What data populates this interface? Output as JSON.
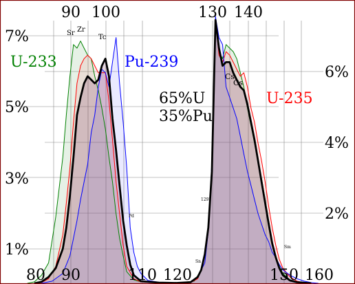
{
  "chart_data": {
    "type": "line",
    "title": "",
    "xlabel": "",
    "ylabel": "",
    "x_top_ticks": [
      "90",
      "100",
      "130",
      "140"
    ],
    "x_bottom_ticks": [
      "80",
      "90",
      "110",
      "120",
      "150",
      "160"
    ],
    "y_left_ticks": [
      "7%",
      "5%",
      "3%",
      "1%"
    ],
    "y_right_ticks": [
      "6%",
      "4%",
      "2%"
    ],
    "series_labels": {
      "u233": "U-233",
      "pu239": "Pu-239",
      "u235": "U-235",
      "mix": "65%U\n35%Pu"
    },
    "annotations": [
      "Sr",
      "Zr",
      "Tc",
      "Cs",
      "Cs",
      "Pd",
      "129I",
      "Sn",
      "Sm"
    ],
    "colors": {
      "u233": "#008000",
      "u235": "#ff0000",
      "pu239": "#0000ff",
      "mix": "#000000",
      "frame": "#800000",
      "grid": "#888888"
    },
    "series": [
      {
        "name": "U-233",
        "points": [
          [
            78,
            0.02
          ],
          [
            80,
            0.06
          ],
          [
            82,
            0.25
          ],
          [
            84,
            0.6
          ],
          [
            86,
            1.9
          ],
          [
            88,
            3.6
          ],
          [
            89,
            4.8
          ],
          [
            90,
            5.9
          ],
          [
            91,
            6.8
          ],
          [
            92,
            6.7
          ],
          [
            93,
            6.9
          ],
          [
            94,
            6.7
          ],
          [
            95,
            6.5
          ],
          [
            96,
            6.4
          ],
          [
            97,
            5.9
          ],
          [
            98,
            5.5
          ],
          [
            99,
            5.0
          ],
          [
            100,
            4.4
          ],
          [
            101,
            3.6
          ],
          [
            102,
            2.9
          ],
          [
            103,
            2.0
          ],
          [
            104,
            1.3
          ],
          [
            105,
            0.8
          ],
          [
            106,
            0.35
          ],
          [
            108,
            0.12
          ],
          [
            110,
            0.06
          ],
          [
            115,
            0.04
          ],
          [
            120,
            0.03
          ],
          [
            125,
            0.08
          ],
          [
            127,
            0.4
          ],
          [
            128,
            0.85
          ],
          [
            129,
            1.5
          ],
          [
            130,
            3.1
          ],
          [
            131,
            7.4
          ],
          [
            132,
            6.6
          ],
          [
            133,
            6.4
          ],
          [
            134,
            6.8
          ],
          [
            135,
            6.7
          ],
          [
            136,
            6.6
          ],
          [
            137,
            6.4
          ],
          [
            138,
            6.0
          ],
          [
            139,
            5.6
          ],
          [
            140,
            5.0
          ],
          [
            141,
            4.5
          ],
          [
            142,
            4.0
          ],
          [
            143,
            3.5
          ],
          [
            144,
            3.0
          ],
          [
            145,
            2.4
          ],
          [
            146,
            1.8
          ],
          [
            147,
            1.2
          ],
          [
            148,
            0.8
          ],
          [
            149,
            0.5
          ],
          [
            150,
            0.3
          ],
          [
            152,
            0.12
          ],
          [
            154,
            0.05
          ],
          [
            158,
            0.02
          ]
        ]
      },
      {
        "name": "U-235",
        "points": [
          [
            80,
            0.01
          ],
          [
            82,
            0.04
          ],
          [
            84,
            0.15
          ],
          [
            86,
            0.5
          ],
          [
            88,
            1.4
          ],
          [
            89,
            2.3
          ],
          [
            90,
            3.3
          ],
          [
            91,
            4.6
          ],
          [
            92,
            5.7
          ],
          [
            93,
            6.2
          ],
          [
            94,
            6.4
          ],
          [
            95,
            6.5
          ],
          [
            96,
            6.4
          ],
          [
            97,
            6.2
          ],
          [
            98,
            6.0
          ],
          [
            99,
            6.0
          ],
          [
            100,
            6.0
          ],
          [
            101,
            5.2
          ],
          [
            102,
            4.1
          ],
          [
            103,
            2.9
          ],
          [
            104,
            2.0
          ],
          [
            105,
            1.1
          ],
          [
            106,
            0.5
          ],
          [
            108,
            0.15
          ],
          [
            110,
            0.06
          ],
          [
            115,
            0.03
          ],
          [
            120,
            0.02
          ],
          [
            124,
            0.04
          ],
          [
            126,
            0.15
          ],
          [
            127,
            0.4
          ],
          [
            128,
            0.8
          ],
          [
            129,
            1.6
          ],
          [
            130,
            3.1
          ],
          [
            131,
            7.5
          ],
          [
            132,
            6.5
          ],
          [
            133,
            6.3
          ],
          [
            134,
            6.6
          ],
          [
            135,
            6.5
          ],
          [
            136,
            6.3
          ],
          [
            137,
            6.1
          ],
          [
            138,
            5.9
          ],
          [
            139,
            6.0
          ],
          [
            140,
            5.6
          ],
          [
            141,
            5.0
          ],
          [
            142,
            4.6
          ],
          [
            143,
            4.0
          ],
          [
            144,
            3.5
          ],
          [
            145,
            2.9
          ],
          [
            146,
            2.2
          ],
          [
            147,
            1.6
          ],
          [
            148,
            1.1
          ],
          [
            149,
            0.7
          ],
          [
            150,
            0.45
          ],
          [
            152,
            0.2
          ],
          [
            154,
            0.08
          ],
          [
            156,
            0.03
          ],
          [
            158,
            0.01
          ]
        ]
      },
      {
        "name": "Pu-239",
        "points": [
          [
            82,
            0.02
          ],
          [
            85,
            0.08
          ],
          [
            88,
            0.3
          ],
          [
            90,
            0.8
          ],
          [
            91,
            1.3
          ],
          [
            92,
            1.8
          ],
          [
            93,
            2.4
          ],
          [
            94,
            2.9
          ],
          [
            95,
            3.4
          ],
          [
            96,
            4.3
          ],
          [
            97,
            4.8
          ],
          [
            98,
            5.6
          ],
          [
            99,
            6.1
          ],
          [
            100,
            6.0
          ],
          [
            101,
            5.6
          ],
          [
            102,
            6.3
          ],
          [
            103,
            7.0
          ],
          [
            104,
            5.7
          ],
          [
            105,
            4.6
          ],
          [
            106,
            3.3
          ],
          [
            107,
            1.6
          ],
          [
            108,
            0.9
          ],
          [
            109,
            0.5
          ],
          [
            110,
            0.3
          ],
          [
            112,
            0.1
          ],
          [
            115,
            0.05
          ],
          [
            120,
            0.03
          ],
          [
            124,
            0.06
          ],
          [
            126,
            0.2
          ],
          [
            128,
            0.6
          ],
          [
            129,
            1.5
          ],
          [
            130,
            3.5
          ],
          [
            131,
            7.6
          ],
          [
            132,
            7.0
          ],
          [
            133,
            6.8
          ],
          [
            134,
            5.6
          ],
          [
            135,
            5.3
          ],
          [
            136,
            5.0
          ],
          [
            137,
            4.7
          ],
          [
            138,
            4.2
          ],
          [
            139,
            3.7
          ],
          [
            140,
            3.2
          ],
          [
            141,
            2.8
          ],
          [
            142,
            2.4
          ],
          [
            143,
            2.0
          ],
          [
            144,
            1.7
          ],
          [
            145,
            1.4
          ],
          [
            146,
            1.2
          ],
          [
            147,
            0.9
          ],
          [
            148,
            0.75
          ],
          [
            149,
            0.55
          ],
          [
            150,
            0.4
          ],
          [
            152,
            0.25
          ],
          [
            154,
            0.15
          ],
          [
            156,
            0.08
          ],
          [
            158,
            0.04
          ],
          [
            160,
            0.02
          ]
        ]
      },
      {
        "name": "Mix",
        "points": [
          [
            80,
            0.02
          ],
          [
            82,
            0.06
          ],
          [
            84,
            0.2
          ],
          [
            86,
            0.45
          ],
          [
            88,
            1.0
          ],
          [
            89,
            1.6
          ],
          [
            90,
            2.5
          ],
          [
            91,
            3.6
          ],
          [
            92,
            4.8
          ],
          [
            93,
            5.3
          ],
          [
            94,
            5.7
          ],
          [
            95,
            5.9
          ],
          [
            96,
            5.8
          ],
          [
            97,
            5.7
          ],
          [
            98,
            5.8
          ],
          [
            99,
            6.2
          ],
          [
            100,
            6.4
          ],
          [
            101,
            5.9
          ],
          [
            102,
            4.7
          ],
          [
            103,
            3.8
          ],
          [
            104,
            2.8
          ],
          [
            105,
            1.8
          ],
          [
            106,
            1.1
          ],
          [
            107,
            0.55
          ],
          [
            108,
            0.25
          ],
          [
            110,
            0.08
          ],
          [
            115,
            0.04
          ],
          [
            120,
            0.03
          ],
          [
            124,
            0.05
          ],
          [
            126,
            0.2
          ],
          [
            127,
            0.4
          ],
          [
            128,
            0.85
          ],
          [
            129,
            1.6
          ],
          [
            130,
            3.2
          ],
          [
            131,
            7.5
          ],
          [
            132,
            6.7
          ],
          [
            133,
            6.2
          ],
          [
            134,
            6.3
          ],
          [
            135,
            6.3
          ],
          [
            136,
            6.0
          ],
          [
            137,
            5.8
          ],
          [
            138,
            5.6
          ],
          [
            139,
            5.5
          ],
          [
            140,
            5.1
          ],
          [
            141,
            4.6
          ],
          [
            142,
            4.1
          ],
          [
            143,
            3.5
          ],
          [
            144,
            2.9
          ],
          [
            145,
            2.3
          ],
          [
            146,
            1.7
          ],
          [
            147,
            1.15
          ],
          [
            148,
            0.75
          ],
          [
            149,
            0.45
          ],
          [
            150,
            0.25
          ],
          [
            152,
            0.1
          ],
          [
            154,
            0.05
          ],
          [
            158,
            0.02
          ]
        ]
      }
    ]
  }
}
